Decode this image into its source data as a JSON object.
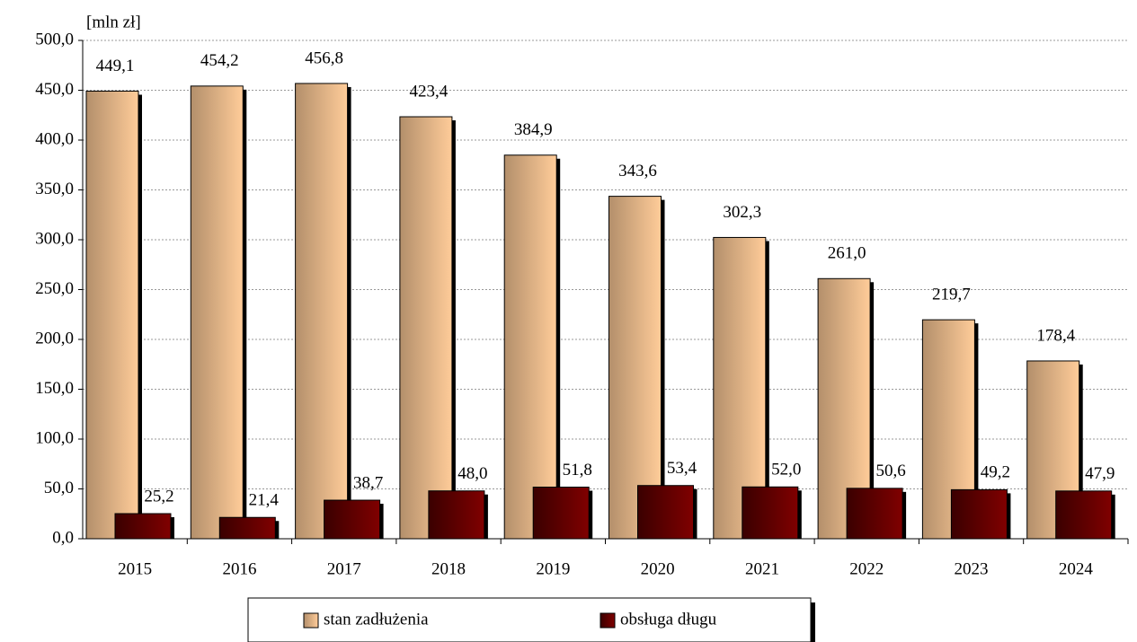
{
  "chart_data": {
    "type": "bar",
    "y_axis_label": "[mln zł]",
    "categories": [
      "2015",
      "2016",
      "2017",
      "2018",
      "2019",
      "2020",
      "2021",
      "2022",
      "2023",
      "2024"
    ],
    "series": [
      {
        "name": "stan zadłużenia",
        "color": "#ffcc99",
        "values": [
          449.1,
          454.2,
          456.8,
          423.4,
          384.9,
          343.6,
          302.3,
          261.0,
          219.7,
          178.4
        ],
        "value_labels": [
          "449,1",
          "454,2",
          "456,8",
          "423,4",
          "384,9",
          "343,6",
          "302,3",
          "261,0",
          "219,7",
          "178,4"
        ]
      },
      {
        "name": "obsługa długu",
        "color": "#800000",
        "values": [
          25.2,
          21.4,
          38.7,
          48.0,
          51.8,
          53.4,
          52.0,
          50.6,
          49.2,
          47.9
        ],
        "value_labels": [
          "25,2",
          "21,4",
          "38,7",
          "48,0",
          "51,8",
          "53,4",
          "52,0",
          "50,6",
          "49,2",
          "47,9"
        ]
      }
    ],
    "ylim": [
      0,
      500
    ],
    "yticks": [
      {
        "value": 0,
        "label": "0,0"
      },
      {
        "value": 50,
        "label": "50,0"
      },
      {
        "value": 100,
        "label": "100,0"
      },
      {
        "value": 150,
        "label": "150,0"
      },
      {
        "value": 200,
        "label": "200,0"
      },
      {
        "value": 250,
        "label": "250,0"
      },
      {
        "value": 300,
        "label": "300,0"
      },
      {
        "value": 350,
        "label": "350,0"
      },
      {
        "value": 400,
        "label": "400,0"
      },
      {
        "value": 450,
        "label": "450,0"
      },
      {
        "value": 500,
        "label": "500,0"
      }
    ],
    "grid": true,
    "legend": "bottom"
  }
}
